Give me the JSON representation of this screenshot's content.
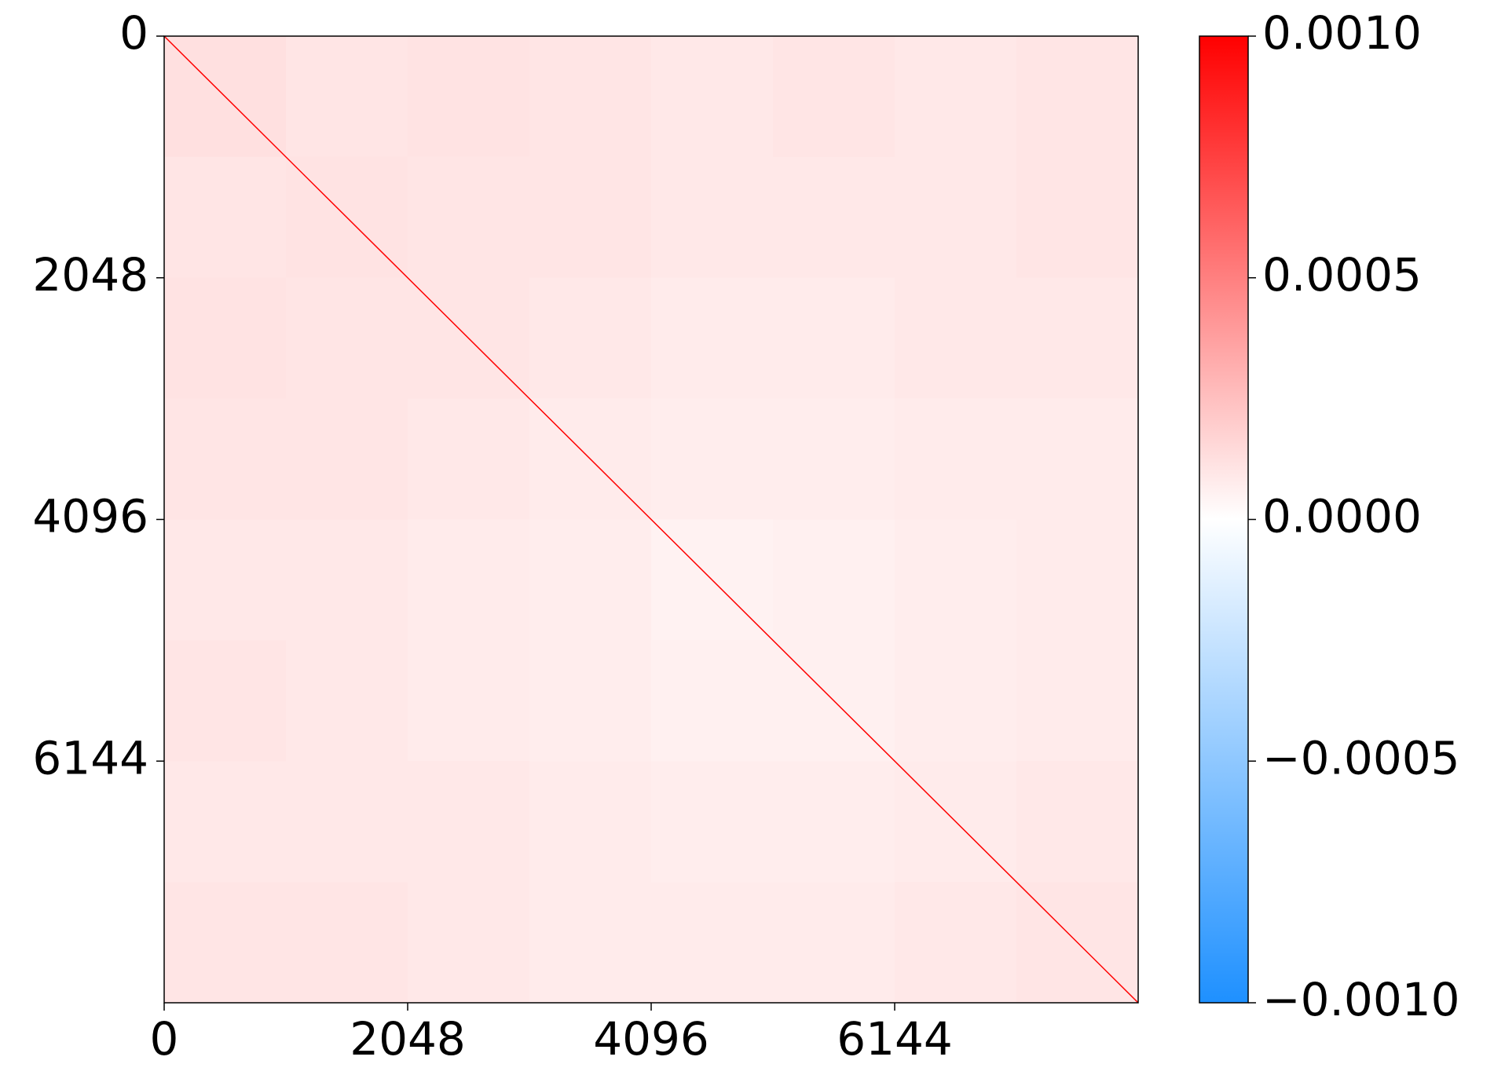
{
  "chart_data": {
    "type": "heatmap",
    "xlim": [
      0,
      8192
    ],
    "ylim": [
      8192,
      0
    ],
    "xticks": [
      0,
      2048,
      4096,
      6144
    ],
    "yticks": [
      0,
      2048,
      4096,
      6144
    ],
    "vlim": [
      -0.001,
      0.001
    ],
    "colorbar_ticks": [
      {
        "value": 0.001,
        "label": "0.0010"
      },
      {
        "value": 0.0005,
        "label": "0.0005"
      },
      {
        "value": 0,
        "label": "0.0000"
      },
      {
        "value": -0.0005,
        "label": "−0.0005"
      },
      {
        "value": -0.001,
        "label": "−0.0010"
      }
    ],
    "colormap": [
      "#1e90ff",
      "#ffffff",
      "#ff0000"
    ],
    "diagonal": 0.001,
    "z": [
      [
        0.00012,
        0.0001,
        0.00011,
        0.0001,
        9e-05,
        0.0001,
        9e-05,
        0.0001
      ],
      [
        0.0001,
        0.00011,
        0.0001,
        0.0001,
        9e-05,
        9e-05,
        9e-05,
        0.0001
      ],
      [
        0.00011,
        0.0001,
        0.0001,
        9e-05,
        8e-05,
        8e-05,
        9e-05,
        9e-05
      ],
      [
        0.0001,
        0.0001,
        9e-05,
        8e-05,
        7e-05,
        7e-05,
        8e-05,
        8e-05
      ],
      [
        9e-05,
        9e-05,
        8e-05,
        7e-05,
        5e-05,
        6e-05,
        7e-05,
        8e-05
      ],
      [
        0.0001,
        9e-05,
        8e-05,
        7e-05,
        6e-05,
        6e-05,
        7e-05,
        8e-05
      ],
      [
        9e-05,
        9e-05,
        9e-05,
        8e-05,
        7e-05,
        7e-05,
        8e-05,
        9e-05
      ],
      [
        0.0001,
        0.0001,
        9e-05,
        8e-05,
        8e-05,
        8e-05,
        9e-05,
        0.0001
      ]
    ]
  }
}
